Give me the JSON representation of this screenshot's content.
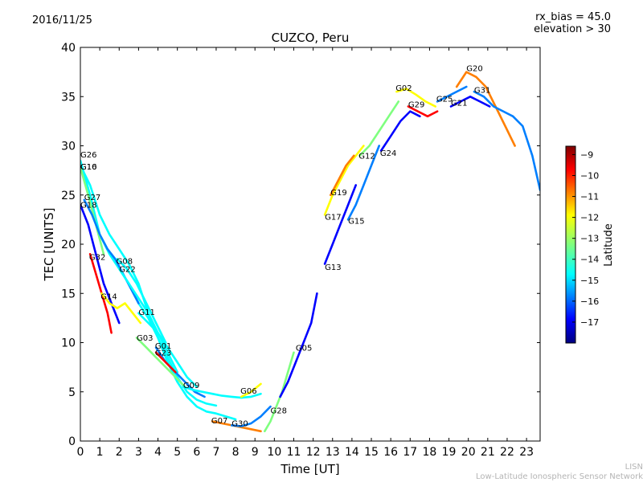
{
  "header": {
    "date": "2016/11/25",
    "bias_line": "rx_bias = 45.0",
    "elevation_line": "elevation > 30",
    "title": "CUZCO, Peru"
  },
  "credit": {
    "short": "LISN",
    "full": "Low-Latitude Ionospheric Sensor Network"
  },
  "chart_data": {
    "type": "scatter",
    "title": "CUZCO, Peru",
    "xlabel": "Time [UT]",
    "ylabel": "TEC [UNITS]",
    "xlim": [
      0,
      23.7
    ],
    "ylim": [
      0,
      40
    ],
    "xticks": [
      0,
      1,
      2,
      3,
      4,
      5,
      6,
      7,
      8,
      9,
      10,
      11,
      12,
      13,
      14,
      15,
      16,
      17,
      18,
      19,
      20,
      21,
      22,
      23
    ],
    "yticks": [
      0,
      5,
      10,
      15,
      20,
      25,
      30,
      35,
      40
    ],
    "grid": false,
    "colorbar": {
      "label": "Latitude",
      "range": [
        -18,
        -8.6
      ],
      "ticks": [
        -9,
        -10,
        -11,
        -12,
        -13,
        -14,
        -15,
        -16,
        -17
      ],
      "colormap": [
        "#00007f",
        "#0000ff",
        "#007fff",
        "#00ffff",
        "#7fff7f",
        "#ffff00",
        "#ff7f00",
        "#ff0000",
        "#7f0000"
      ],
      "placement": "right"
    },
    "series": [
      {
        "name": "G26",
        "label_at": [
          0.0,
          28.8
        ],
        "lat": -15.0,
        "x": [
          0,
          0.5,
          1,
          1.5,
          2,
          2.5,
          3,
          3.5,
          4,
          4.5,
          5,
          5.5,
          6,
          6.5,
          7
        ],
        "y": [
          28.5,
          25,
          21,
          19,
          17.5,
          16,
          14,
          12.5,
          10.5,
          8.5,
          6.5,
          5,
          4.2,
          3.8,
          3.6
        ]
      },
      {
        "name": "G10",
        "label_at": [
          0.0,
          27.6
        ],
        "lat": -14.0,
        "x": [
          0,
          0.5,
          1,
          1.5,
          2,
          2.5,
          3,
          3.5,
          4,
          4.5,
          5,
          5.5,
          6,
          6.5,
          7,
          7.5,
          8
        ],
        "y": [
          28,
          26,
          23,
          21,
          19.5,
          18,
          16,
          13,
          10.5,
          8,
          6,
          4.5,
          3.5,
          3,
          2.8,
          2.5,
          2.2
        ]
      },
      {
        "name": "G16",
        "label_at": [
          0.0,
          27.6
        ],
        "lat": -13.5,
        "x": [
          0,
          0.4,
          0.8,
          1.2
        ],
        "y": [
          27.8,
          25,
          22,
          19
        ]
      },
      {
        "name": "G27",
        "label_at": [
          0.2,
          24.5
        ],
        "lat": -15.5,
        "x": [
          0.2,
          0.6,
          1,
          1.4,
          1.8,
          2.2,
          2.6,
          3
        ],
        "y": [
          24.5,
          23,
          21,
          19.5,
          18.5,
          17,
          15.5,
          14
        ]
      },
      {
        "name": "G18",
        "label_at": [
          0.0,
          23.7
        ],
        "lat": -16.5,
        "x": [
          0,
          0.4,
          0.8,
          1.2,
          1.6,
          2
        ],
        "y": [
          24,
          22,
          19,
          16,
          14,
          12
        ]
      },
      {
        "name": "G32",
        "label_at": [
          0.45,
          18.4
        ],
        "lat": -10.0,
        "x": [
          0.5,
          0.8,
          1.1,
          1.4,
          1.6
        ],
        "y": [
          19,
          17,
          15,
          13,
          11
        ]
      },
      {
        "name": "G08",
        "label_at": [
          1.85,
          18.0
        ],
        "lat": -15.0,
        "x": [
          1.9,
          2.4,
          2.9,
          3.4,
          3.9,
          4.4
        ],
        "y": [
          18.5,
          17.5,
          16,
          14,
          12,
          10
        ]
      },
      {
        "name": "G22",
        "label_at": [
          2.0,
          17.2
        ],
        "lat": -14.5,
        "x": [
          2,
          2.5,
          3,
          3.5,
          4,
          4.5,
          5
        ],
        "y": [
          17.5,
          16,
          14.5,
          13,
          11,
          9,
          7
        ]
      },
      {
        "name": "G14",
        "label_at": [
          1.05,
          14.4
        ],
        "lat": -12.5,
        "x": [
          1.1,
          1.5,
          1.9,
          2.3,
          2.7,
          3.1
        ],
        "y": [
          15,
          14,
          13.5,
          14,
          13,
          12
        ]
      },
      {
        "name": "G11",
        "label_at": [
          3.0,
          12.8
        ],
        "lat": -14.5,
        "x": [
          3,
          3.5,
          4,
          4.5,
          5,
          5.5,
          6
        ],
        "y": [
          13,
          12,
          11,
          9.5,
          8,
          6.5,
          5.5
        ]
      },
      {
        "name": "G03",
        "label_at": [
          2.9,
          10.2
        ],
        "lat": -13.0,
        "x": [
          2.9,
          3.4,
          3.9,
          4.4,
          4.9,
          5.4
        ],
        "y": [
          10.5,
          9.5,
          8.5,
          7.5,
          6.5,
          5.5
        ]
      },
      {
        "name": "G01",
        "label_at": [
          3.85,
          9.4
        ],
        "lat": -15.5,
        "x": [
          3.9,
          4.4,
          4.9,
          5.4,
          5.9,
          6.4
        ],
        "y": [
          9.5,
          8,
          7,
          6,
          5,
          4.5
        ]
      },
      {
        "name": "G23",
        "label_at": [
          3.85,
          8.7
        ],
        "lat": -9.5,
        "x": [
          3.9,
          4.4,
          4.9
        ],
        "y": [
          9,
          8,
          7
        ]
      },
      {
        "name": "G09",
        "label_at": [
          5.3,
          5.4
        ],
        "lat": -14.0,
        "x": [
          5.3,
          5.8,
          6.3,
          6.8,
          7.3,
          7.8,
          8.3,
          8.8,
          9.3
        ],
        "y": [
          5.5,
          5.2,
          5,
          4.8,
          4.6,
          4.5,
          4.4,
          4.5,
          4.8
        ]
      },
      {
        "name": "G06",
        "label_at": [
          8.25,
          4.8
        ],
        "lat": -12.0,
        "x": [
          8.3,
          8.8,
          9.3
        ],
        "y": [
          4.5,
          5,
          5.8
        ]
      },
      {
        "name": "G07",
        "label_at": [
          6.75,
          1.8
        ],
        "lat": -10.5,
        "x": [
          6.8,
          7.3,
          7.8,
          8.3,
          8.8,
          9.3
        ],
        "y": [
          2,
          1.8,
          1.6,
          1.4,
          1.2,
          1.0
        ]
      },
      {
        "name": "G30",
        "label_at": [
          7.8,
          1.5
        ],
        "lat": -16.0,
        "x": [
          7.8,
          8.3,
          8.8,
          9.3,
          9.8
        ],
        "y": [
          1.6,
          1.5,
          1.8,
          2.5,
          3.5
        ]
      },
      {
        "name": "G28",
        "label_at": [
          9.8,
          2.8
        ],
        "lat": -13.0,
        "x": [
          9.5,
          9.8,
          10.1,
          10.4,
          10.7,
          11.0
        ],
        "y": [
          1,
          2,
          3.5,
          5,
          7,
          9
        ]
      },
      {
        "name": "G05",
        "label_at": [
          11.1,
          9.2
        ],
        "lat": -16.5,
        "x": [
          10.3,
          10.7,
          11.1,
          11.5,
          11.9,
          12.2
        ],
        "y": [
          4.5,
          6,
          8,
          10,
          12,
          15
        ]
      },
      {
        "name": "G13",
        "label_at": [
          12.6,
          17.4
        ],
        "lat": -17.0,
        "x": [
          12.6,
          13,
          13.4,
          13.8,
          14.2
        ],
        "y": [
          18,
          20,
          22,
          24,
          26
        ]
      },
      {
        "name": "G17",
        "label_at": [
          12.6,
          22.5
        ],
        "lat": -12.5,
        "x": [
          12.6,
          13,
          13.4,
          13.8,
          14.2,
          14.6
        ],
        "y": [
          23,
          25,
          26.5,
          28,
          29,
          30
        ]
      },
      {
        "name": "G15",
        "label_at": [
          13.8,
          22.1
        ],
        "lat": -16.0,
        "x": [
          13.8,
          14.2,
          14.6,
          15,
          15.4
        ],
        "y": [
          22.5,
          24,
          26,
          28,
          30
        ]
      },
      {
        "name": "G19",
        "label_at": [
          12.9,
          25.0
        ],
        "lat": -11.0,
        "x": [
          12.9,
          13.3,
          13.7,
          14.1
        ],
        "y": [
          25,
          26.5,
          28,
          29
        ]
      },
      {
        "name": "G12",
        "label_at": [
          14.35,
          28.7
        ],
        "lat": -13.5,
        "x": [
          14.4,
          14.9,
          15.4,
          15.9,
          16.4
        ],
        "y": [
          29,
          30,
          31.5,
          33,
          34.5
        ]
      },
      {
        "name": "G24",
        "label_at": [
          15.45,
          29.0
        ],
        "lat": -16.5,
        "x": [
          15.5,
          16,
          16.5,
          17,
          17.5
        ],
        "y": [
          29.5,
          31,
          32.5,
          33.5,
          33
        ]
      },
      {
        "name": "G02",
        "label_at": [
          16.25,
          35.6
        ],
        "lat": -12.0,
        "x": [
          16.3,
          16.8,
          17.3,
          17.8,
          18.3
        ],
        "y": [
          35.5,
          35.8,
          35.2,
          34.5,
          34
        ]
      },
      {
        "name": "G29",
        "label_at": [
          16.9,
          33.9
        ],
        "lat": -10.0,
        "x": [
          16.9,
          17.4,
          17.9,
          18.4
        ],
        "y": [
          34,
          33.5,
          33,
          33.5
        ]
      },
      {
        "name": "G25",
        "label_at": [
          18.35,
          34.5
        ],
        "lat": -16.0,
        "x": [
          18.4,
          18.9,
          19.4,
          19.9
        ],
        "y": [
          34.5,
          35,
          35.5,
          36
        ]
      },
      {
        "name": "G21",
        "label_at": [
          19.1,
          34.1
        ],
        "lat": -16.5,
        "x": [
          19.1,
          19.6,
          20.1,
          20.6,
          21.1
        ],
        "y": [
          34,
          34.5,
          35,
          34.5,
          34
        ]
      },
      {
        "name": "G20",
        "label_at": [
          19.9,
          37.6
        ],
        "lat": -11.5,
        "x": [
          19.4,
          19.9,
          20.4,
          20.9,
          21.4,
          21.9,
          22.4
        ],
        "y": [
          36,
          37.5,
          37,
          36,
          34,
          32,
          30
        ]
      },
      {
        "name": "G31",
        "label_at": [
          20.3,
          35.4
        ],
        "lat": -15.5,
        "x": [
          20.3,
          20.8,
          21.3,
          21.8,
          22.3,
          22.8,
          23.3,
          23.7
        ],
        "y": [
          35.5,
          35,
          34,
          33.5,
          33,
          32,
          29,
          25.5
        ]
      }
    ]
  }
}
